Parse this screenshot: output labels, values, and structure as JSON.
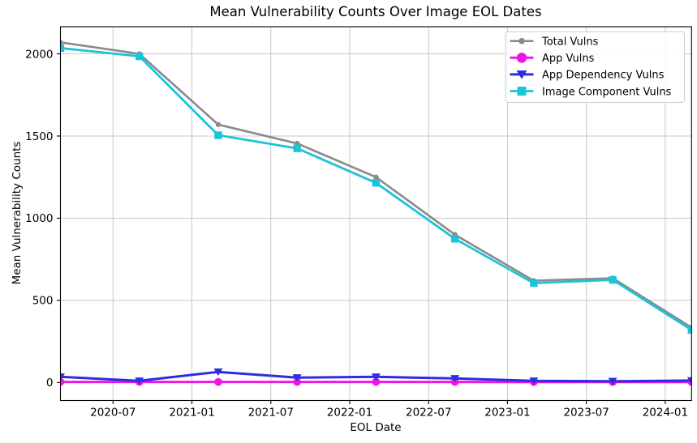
{
  "chart_data": {
    "type": "line",
    "title": "Mean Vulnerability Counts Over Image EOL Dates",
    "xlabel": "EOL Date",
    "ylabel": "Mean Vulnerability Counts",
    "x": [
      "2020-03",
      "2020-09",
      "2021-03",
      "2021-09",
      "2022-03",
      "2022-09",
      "2023-03",
      "2023-09",
      "2024-03"
    ],
    "x_month_offsets": [
      0,
      6,
      12,
      18,
      24,
      30,
      36,
      42,
      48
    ],
    "xlim_months": [
      0,
      48
    ],
    "x_tick_labels": [
      "2020-07",
      "2021-01",
      "2021-07",
      "2022-01",
      "2022-07",
      "2023-01",
      "2023-07",
      "2024-01"
    ],
    "x_tick_month_offsets": [
      4,
      10,
      16,
      22,
      28,
      34,
      40,
      46
    ],
    "y_ticks": [
      0,
      500,
      1000,
      1500,
      2000
    ],
    "ylim": [
      -109,
      2165
    ],
    "grid": true,
    "legend_position": "upper right",
    "series": [
      {
        "name": "Total Vulns",
        "color": "#8a8a8a",
        "marker": "circle-small",
        "values": [
          2070,
          2000,
          1570,
          1455,
          1250,
          900,
          620,
          635,
          335
        ]
      },
      {
        "name": "App Vulns",
        "color": "#ee15e8",
        "marker": "circle",
        "values": [
          4,
          4,
          4,
          4,
          4,
          4,
          3,
          3,
          3
        ]
      },
      {
        "name": "App Dependency Vulns",
        "color": "#2d2de1",
        "marker": "triangle-down",
        "values": [
          35,
          10,
          65,
          30,
          35,
          25,
          10,
          8,
          12
        ]
      },
      {
        "name": "Image Component Vulns",
        "color": "#1ec3d7",
        "marker": "square",
        "values": [
          2035,
          1985,
          1505,
          1425,
          1215,
          875,
          605,
          625,
          320
        ]
      }
    ]
  },
  "colors": {
    "background": "#ffffff",
    "grid": "#c8c8c8",
    "axis": "#000000",
    "tick_label": "#000000",
    "legend_border": "#cccccc",
    "legend_background": "#ffffff"
  }
}
